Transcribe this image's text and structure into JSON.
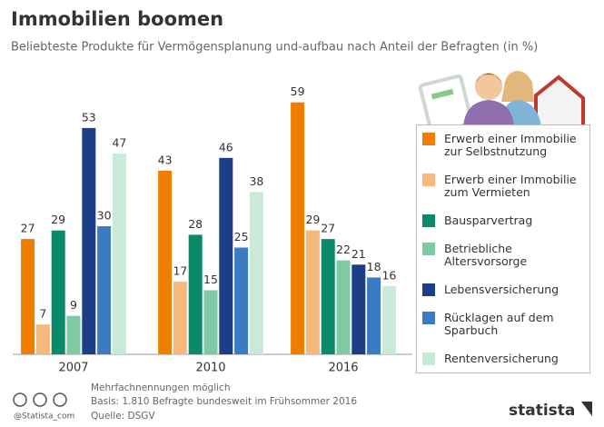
{
  "chart_data": {
    "type": "bar",
    "title": "Immobilien boomen",
    "subtitle": "Beliebteste Produkte für Vermögensplanung und-aufbau nach Anteil der Befragten (in %)",
    "categories": [
      "2007",
      "2010",
      "2016"
    ],
    "series": [
      {
        "name": "Erwerb einer Immobilie zur Selbstnutzung",
        "color": "#ef7d00",
        "values": [
          27,
          43,
          59
        ]
      },
      {
        "name": "Erwerb einer Immobilie zum Vermieten",
        "color": "#f7b87b",
        "values": [
          7,
          17,
          29
        ]
      },
      {
        "name": "Bausparvertrag",
        "color": "#0a8a68",
        "values": [
          29,
          28,
          27
        ]
      },
      {
        "name": "Betriebliche Altersvorsorge",
        "color": "#7dcaa3",
        "values": [
          9,
          15,
          22
        ]
      },
      {
        "name": "Lebensversicherung",
        "color": "#1b3e86",
        "values": [
          53,
          46,
          21
        ]
      },
      {
        "name": "Rücklagen auf dem Sparbuch",
        "color": "#3b7bc1",
        "values": [
          30,
          25,
          18
        ]
      },
      {
        "name": "Rentenversicherung",
        "color": "#c9e9d9",
        "values": [
          47,
          38,
          16
        ]
      }
    ],
    "notes": [
      "Mehrfachnennungen möglich",
      "Basis: 1.810 Befragte bundesweit im Frühsommer 2016",
      "Quelle: DSGV"
    ],
    "credit": "@Statista_com",
    "brand": "statista"
  }
}
